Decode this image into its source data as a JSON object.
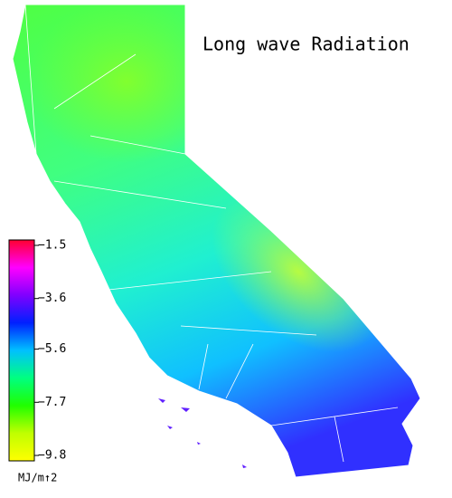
{
  "title": "Long wave Radiation",
  "colorbar": {
    "range": [
      -9.8,
      -1.5
    ],
    "ticks": [
      {
        "value": -1.5,
        "label": "−1.5"
      },
      {
        "value": -3.6,
        "label": "−3.6"
      },
      {
        "value": -5.6,
        "label": "−5.6"
      },
      {
        "value": -7.7,
        "label": "−7.7"
      },
      {
        "value": -9.8,
        "label": "−9.8"
      }
    ],
    "colors": [
      "#ff0030",
      "#ff00ff",
      "#8000ff",
      "#0020ff",
      "#00c0ff",
      "#00ff80",
      "#20ff00",
      "#c0ff00",
      "#ffff00"
    ],
    "unit": "MJ/m↑2"
  }
}
